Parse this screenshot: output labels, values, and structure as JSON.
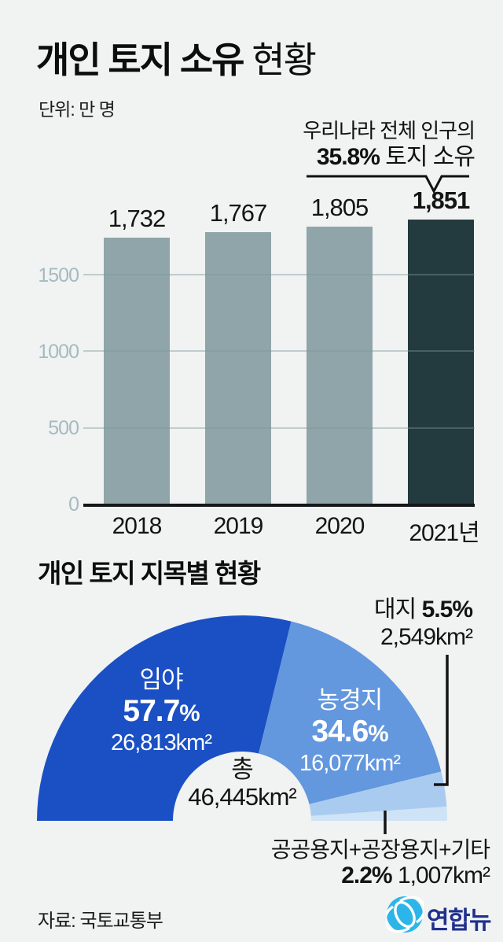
{
  "header": {
    "title_bold": "개인 토지 소유",
    "title_regular": " 현황",
    "unit_label": "단위: 만 명",
    "annotation": {
      "line1": "우리나라 전체 인구의",
      "percent": "35.8%",
      "suffix": " 토지 소유"
    }
  },
  "misc": {
    "percent_sign": "%"
  },
  "chart_data": [
    {
      "type": "bar",
      "title": "개인 토지 소유 현황",
      "unit": "만 명",
      "categories": [
        "2018",
        "2019",
        "2020",
        "2021년"
      ],
      "values": [
        1732,
        1767,
        1805,
        1851
      ],
      "value_labels": [
        "1,732",
        "1,767",
        "1,805",
        "1,851"
      ],
      "highlight_index": 3,
      "yticks": [
        0,
        500,
        1000,
        1500
      ],
      "ytick_labels": [
        "0",
        "500",
        "1000",
        "1500"
      ],
      "ylim": [
        0,
        1900
      ],
      "grid": true,
      "bar_color": "#90a5a9",
      "highlight_color": "#233a3e",
      "annotation": "우리나라 전체 인구의 35.8% 토지 소유"
    },
    {
      "type": "pie",
      "shape": "semicircle-donut",
      "title": "개인 토지 지목별 현황",
      "slices": [
        {
          "label": "임야",
          "pct": 57.7,
          "area": "26,813km²",
          "color": "#1a50c4"
        },
        {
          "label": "농경지",
          "pct": 34.6,
          "area": "16,077km²",
          "color": "#6397de"
        },
        {
          "label": "대지",
          "pct": 5.5,
          "area": "2,549km²",
          "color": "#aacbf0"
        },
        {
          "label": "공공용지+공장용지+기타",
          "pct": 2.2,
          "area": "1,007km²",
          "color": "#cfe3f7"
        }
      ],
      "center_label": "총",
      "center_value": "46,445km²",
      "legend_position": "on-slices"
    }
  ],
  "footer": {
    "source": "자료: 국토교통부",
    "logo_text": "연합뉴스"
  }
}
